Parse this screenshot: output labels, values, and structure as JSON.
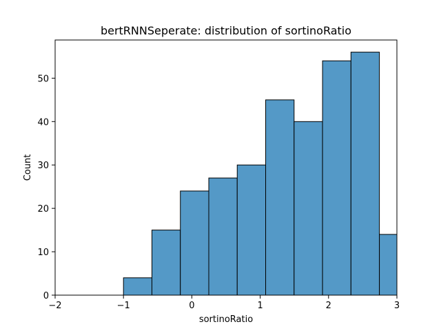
{
  "chart_data": {
    "type": "bar",
    "title": "bertRNNSeperate: distribution of sortinoRatio",
    "xlabel": "sortinoRatio",
    "ylabel": "Count",
    "xlim": [
      -2,
      3
    ],
    "ylim": [
      0,
      58.8
    ],
    "xticks": [
      -2,
      -1,
      0,
      1,
      2,
      3
    ],
    "yticks": [
      0,
      10,
      20,
      30,
      40,
      50
    ],
    "grid": false,
    "bar_color": "#5499c7",
    "edge_color": "#000000",
    "bins": [
      {
        "x0": -1.0,
        "x1": -0.584,
        "count": 4
      },
      {
        "x0": -0.584,
        "x1": -0.168,
        "count": 15
      },
      {
        "x0": -0.168,
        "x1": 0.248,
        "count": 24
      },
      {
        "x0": 0.248,
        "x1": 0.664,
        "count": 27
      },
      {
        "x0": 0.664,
        "x1": 1.08,
        "count": 30
      },
      {
        "x0": 1.08,
        "x1": 1.496,
        "count": 45
      },
      {
        "x0": 1.496,
        "x1": 1.912,
        "count": 40
      },
      {
        "x0": 1.912,
        "x1": 2.328,
        "count": 54
      },
      {
        "x0": 2.328,
        "x1": 2.744,
        "count": 56
      },
      {
        "x0": 2.744,
        "x1": 3.0,
        "count": 14
      }
    ]
  }
}
